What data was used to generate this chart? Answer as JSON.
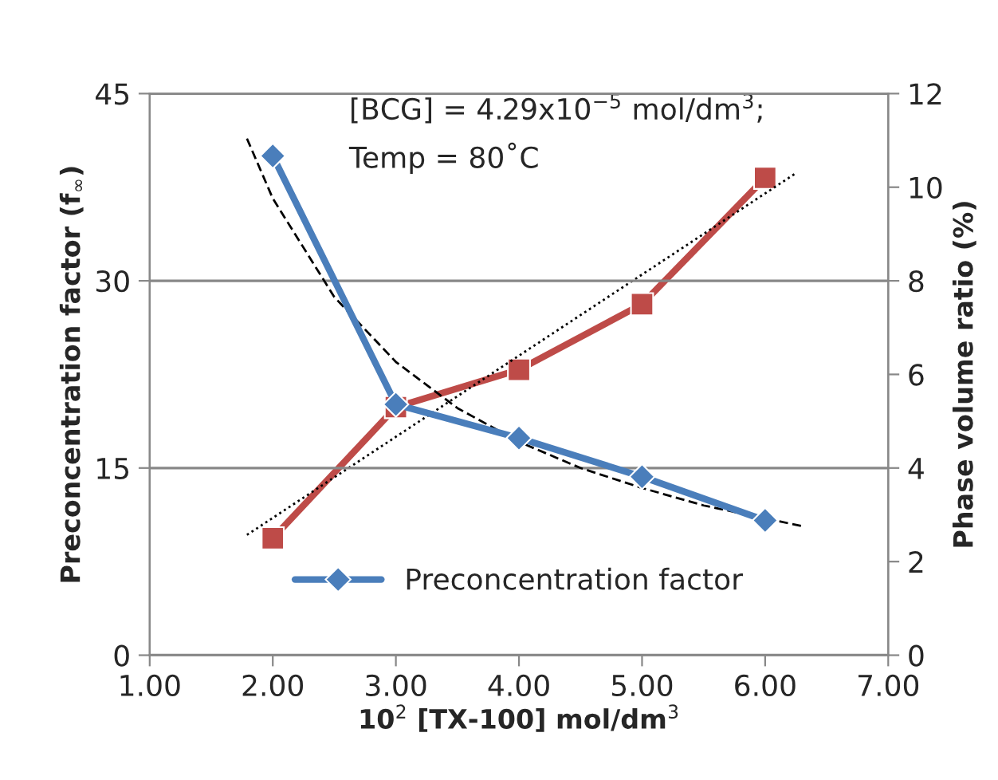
{
  "chart_data": {
    "type": "line",
    "xlabel": "10$^{2}$ [TX-100] mol/dm$^{3}$",
    "ylabel": "Preconcentration factor (f$_{∞}$)",
    "y2label": "Phase volume ratio (%)",
    "annotations": [
      "[BCG] = 4.29x10$^{−5}$ mol/dm$^{3}$;",
      "Temp = 80˚C"
    ],
    "xlim": [
      1,
      7
    ],
    "xticks": [
      {
        "value": 1,
        "label": "1.00"
      },
      {
        "value": 2,
        "label": "2.00"
      },
      {
        "value": 3,
        "label": "3.00"
      },
      {
        "value": 4,
        "label": "4.00"
      },
      {
        "value": 5,
        "label": "5.00"
      },
      {
        "value": 6,
        "label": "6.00"
      },
      {
        "value": 7,
        "label": "7.00"
      }
    ],
    "ylim": [
      0,
      45
    ],
    "yticks": [
      0,
      15,
      30,
      45
    ],
    "y2lim": [
      0,
      12
    ],
    "y2ticks": [
      0,
      2,
      4,
      6,
      8,
      10,
      12
    ],
    "grid": "y",
    "legend": "bottom",
    "series": [
      {
        "name": "Preconcentration factor",
        "color": "#4a7ebb",
        "marker": "diamond",
        "line_style": "solid",
        "x": [
          2,
          3,
          4,
          5,
          6
        ],
        "values": [
          40.0,
          20.1,
          17.4,
          14.3,
          10.8
        ]
      },
      {
        "color": "#be4b48",
        "marker": "square",
        "line_style": "solid",
        "axis": "y2",
        "x": [
          2,
          3,
          4,
          5,
          6
        ],
        "values": [
          2.5,
          5.3,
          6.1,
          7.5,
          10.2
        ]
      },
      {
        "color": "#000000",
        "marker": "none",
        "line_style": "dashed",
        "x": [
          1.79,
          2,
          2.5,
          3,
          3.5,
          4,
          4.5,
          5,
          5.5,
          6.32
        ],
        "values": [
          41.4,
          36.6,
          28.7,
          23.5,
          19.8,
          17.1,
          15.0,
          13.4,
          12.0,
          10.3
        ]
      },
      {
        "color": "#000000",
        "marker": "none",
        "line_style": "dotted",
        "axis": "y2",
        "x": [
          1.79,
          6.25
        ],
        "values": [
          2.57,
          10.3
        ]
      }
    ]
  }
}
